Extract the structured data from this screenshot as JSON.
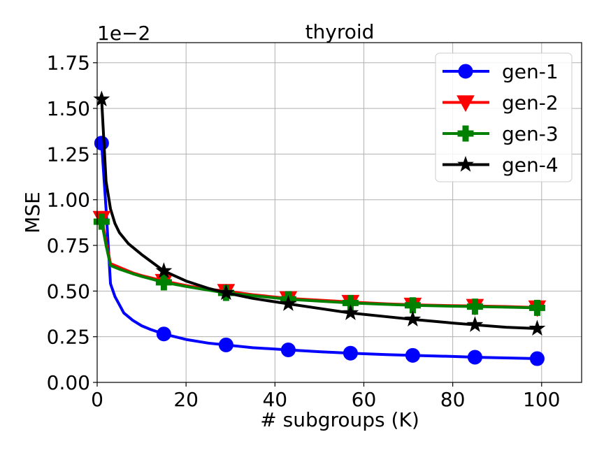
{
  "chart_data": {
    "type": "line",
    "title": "thyroid",
    "xlabel": "# subgroups (K)",
    "ylabel": "MSE",
    "scale_label": "1e−2",
    "xlim": [
      0,
      109
    ],
    "ylim": [
      0,
      1.86
    ],
    "x_ticks": [
      0,
      20,
      40,
      60,
      80,
      100
    ],
    "x_tick_labels": [
      "0",
      "20",
      "40",
      "60",
      "80",
      "100"
    ],
    "y_ticks": [
      0,
      0.25,
      0.5,
      0.75,
      1.0,
      1.25,
      1.5,
      1.75
    ],
    "y_tick_labels": [
      "0.00",
      "0.25",
      "0.50",
      "0.75",
      "1.00",
      "1.25",
      "1.50",
      "1.75"
    ],
    "grid": true,
    "legend_position": "top-right",
    "series": [
      {
        "name": "gen-1",
        "color": "#0000ff",
        "marker": "circle",
        "x": [
          1,
          2,
          3,
          4,
          6,
          8,
          10,
          12,
          15,
          20,
          25,
          29,
          35,
          43,
          50,
          57,
          65,
          71,
          80,
          85,
          92,
          99
        ],
        "y": [
          1.31,
          0.95,
          0.54,
          0.47,
          0.38,
          0.34,
          0.31,
          0.29,
          0.265,
          0.235,
          0.215,
          0.205,
          0.19,
          0.178,
          0.168,
          0.16,
          0.152,
          0.148,
          0.142,
          0.138,
          0.134,
          0.13
        ],
        "marker_x": [
          1,
          15,
          29,
          43,
          57,
          71,
          85,
          99
        ],
        "marker_y": [
          1.31,
          0.265,
          0.205,
          0.178,
          0.16,
          0.148,
          0.138,
          0.13
        ]
      },
      {
        "name": "gen-2",
        "color": "#ff0000",
        "marker": "triangle-down",
        "x": [
          1,
          2,
          3,
          5,
          8,
          10,
          15,
          20,
          25,
          29,
          35,
          43,
          50,
          57,
          65,
          71,
          80,
          85,
          92,
          99
        ],
        "y": [
          0.9,
          0.77,
          0.65,
          0.63,
          0.6,
          0.585,
          0.555,
          0.53,
          0.51,
          0.5,
          0.48,
          0.46,
          0.45,
          0.44,
          0.43,
          0.425,
          0.42,
          0.418,
          0.415,
          0.41
        ],
        "marker_x": [
          1,
          15,
          29,
          43,
          57,
          71,
          85,
          99
        ],
        "marker_y": [
          0.9,
          0.555,
          0.5,
          0.46,
          0.44,
          0.425,
          0.418,
          0.41
        ]
      },
      {
        "name": "gen-3",
        "color": "#008000",
        "marker": "plus",
        "x": [
          1,
          2,
          3,
          5,
          8,
          10,
          15,
          20,
          25,
          29,
          35,
          43,
          50,
          57,
          65,
          71,
          80,
          85,
          92,
          99
        ],
        "y": [
          0.88,
          0.75,
          0.64,
          0.62,
          0.595,
          0.58,
          0.548,
          0.525,
          0.505,
          0.49,
          0.475,
          0.455,
          0.445,
          0.435,
          0.427,
          0.422,
          0.417,
          0.415,
          0.412,
          0.408
        ],
        "marker_x": [
          1,
          15,
          29,
          43,
          57,
          71,
          85,
          99
        ],
        "marker_y": [
          0.88,
          0.548,
          0.49,
          0.455,
          0.435,
          0.422,
          0.415,
          0.408
        ]
      },
      {
        "name": "gen-4",
        "color": "#000000",
        "marker": "star",
        "x": [
          1,
          2,
          3,
          4,
          5,
          7,
          10,
          15,
          20,
          25,
          29,
          35,
          43,
          50,
          57,
          65,
          71,
          80,
          85,
          92,
          99
        ],
        "y": [
          1.55,
          1.1,
          0.95,
          0.87,
          0.82,
          0.76,
          0.7,
          0.61,
          0.555,
          0.515,
          0.49,
          0.46,
          0.43,
          0.405,
          0.38,
          0.36,
          0.345,
          0.325,
          0.315,
          0.302,
          0.295
        ],
        "marker_x": [
          1,
          15,
          29,
          43,
          57,
          71,
          85,
          99
        ],
        "marker_y": [
          1.55,
          0.61,
          0.49,
          0.43,
          0.38,
          0.345,
          0.315,
          0.295
        ]
      }
    ]
  }
}
